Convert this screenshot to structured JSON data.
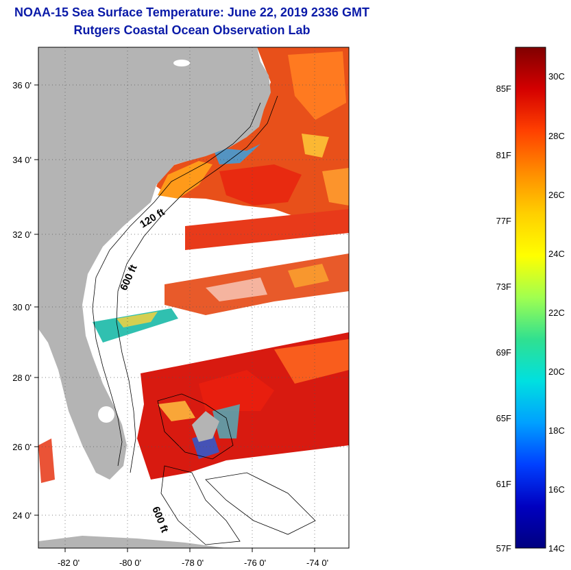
{
  "header": {
    "title": "NOAA-15 Sea Surface Temperature:  June 22, 2019 2336 GMT",
    "subtitle": "Rutgers Coastal Ocean Observation Lab"
  },
  "map": {
    "lon_range": [
      -83,
      -73
    ],
    "lat_range": [
      23,
      37
    ],
    "lon_ticks": [
      "-82 0'",
      "-80 0'",
      "-78 0'",
      "-76 0'",
      "-74 0'"
    ],
    "lat_ticks": [
      "24 0'",
      "26 0'",
      "28 0'",
      "30 0'",
      "32 0'",
      "34 0'",
      "36 0'"
    ],
    "contour_labels": [
      "120 ft",
      "600 ft",
      "600 ft"
    ],
    "land_color": "#b4b4b4"
  },
  "colorbar": {
    "fahrenheit_labels": [
      "85F",
      "81F",
      "77F",
      "73F",
      "69F",
      "65F",
      "61F",
      "57F"
    ],
    "celsius_labels": [
      "30C",
      "28C",
      "26C",
      "24C",
      "22C",
      "20C",
      "18C",
      "16C",
      "14C"
    ],
    "colors": [
      "#800000",
      "#d40000",
      "#ff4000",
      "#ff8c00",
      "#ffd000",
      "#ffff00",
      "#a0ff50",
      "#30e090",
      "#00e0e0",
      "#00a0ff",
      "#0040ff",
      "#0000c0",
      "#000080"
    ]
  }
}
